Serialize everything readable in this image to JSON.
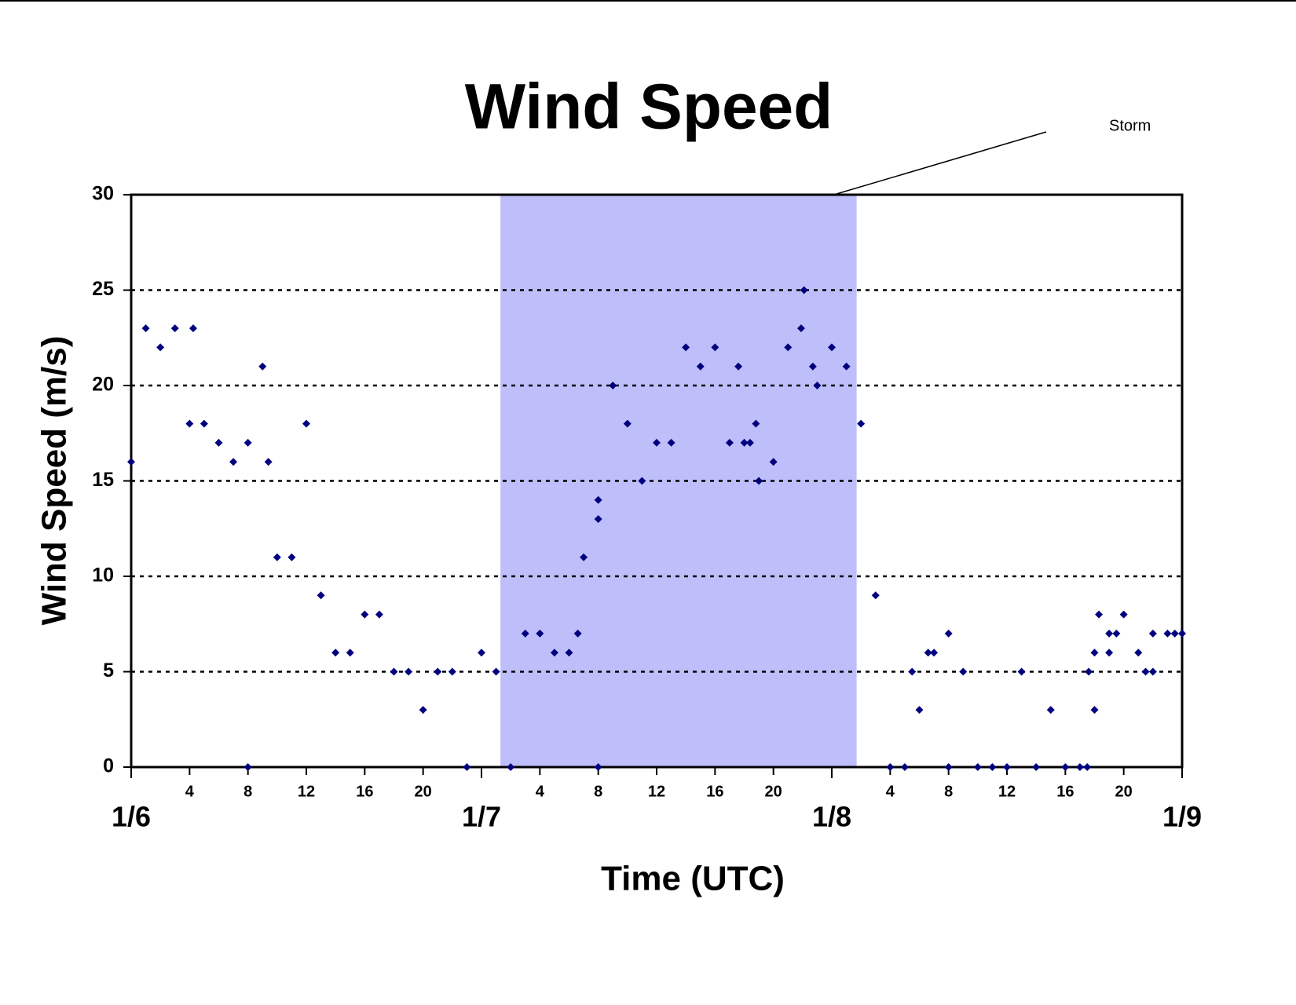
{
  "chart_data": {
    "type": "scatter",
    "title": "Wind Speed",
    "x_label": "Time (UTC)",
    "y_label": "Wind Speed (m/s)",
    "annotation": "Storm",
    "storm_span": [
      25.3,
      49.7
    ],
    "storm_color": "#bebefa",
    "color": "#00007f",
    "grid": true,
    "xlim": [
      0,
      72
    ],
    "ylim": [
      0,
      30
    ],
    "yticks": [
      0,
      5,
      10,
      15,
      20,
      25,
      30
    ],
    "date_ticks": [
      {
        "value": 0,
        "label": "1/6"
      },
      {
        "value": 24,
        "label": "1/7"
      },
      {
        "value": 48,
        "label": "1/8"
      },
      {
        "value": 72,
        "label": "1/9"
      }
    ],
    "xticks": [
      {
        "value": 4,
        "label": "4"
      },
      {
        "value": 8,
        "label": "8"
      },
      {
        "value": 12,
        "label": "12"
      },
      {
        "value": 16,
        "label": "16"
      },
      {
        "value": 20,
        "label": "20"
      },
      {
        "value": 28,
        "label": "4"
      },
      {
        "value": 32,
        "label": "8"
      },
      {
        "value": 36,
        "label": "12"
      },
      {
        "value": 40,
        "label": "16"
      },
      {
        "value": 44,
        "label": "20"
      },
      {
        "value": 52,
        "label": "4"
      },
      {
        "value": 56,
        "label": "8"
      },
      {
        "value": 60,
        "label": "12"
      },
      {
        "value": 64,
        "label": "16"
      },
      {
        "value": 68,
        "label": "20"
      }
    ],
    "x": [
      0,
      1,
      2,
      3,
      4,
      4.25,
      5,
      6,
      7,
      8,
      8,
      9,
      9.4,
      10,
      11,
      12,
      13,
      14,
      15,
      16,
      17,
      18,
      19,
      20,
      21,
      22,
      23,
      24,
      25,
      26,
      27,
      28,
      29,
      30,
      30.6,
      31,
      32,
      32,
      32,
      33,
      34,
      35,
      36,
      37,
      38,
      39,
      40,
      41,
      41.6,
      42,
      42.4,
      42.8,
      43,
      44,
      45,
      45.9,
      46.1,
      46.7,
      47,
      48,
      49,
      50,
      51,
      52,
      53,
      53.5,
      54,
      54.6,
      55,
      56,
      56,
      57,
      58,
      59,
      60,
      61,
      62,
      63,
      64,
      65,
      65.5,
      65.6,
      66,
      66,
      66.3,
      67,
      67,
      67.5,
      68,
      69,
      69.5,
      70,
      70,
      71,
      71.5,
      72
    ],
    "values": [
      16,
      23,
      22,
      23,
      18,
      23,
      18,
      17,
      16,
      17,
      0,
      21,
      16,
      11,
      11,
      18,
      9,
      6,
      6,
      8,
      8,
      5,
      5,
      3,
      5,
      5,
      0,
      6,
      5,
      0,
      7,
      7,
      6,
      6,
      7,
      11,
      14,
      13,
      0,
      20,
      18,
      15,
      17,
      17,
      22,
      21,
      22,
      17,
      21,
      17,
      17,
      18,
      15,
      16,
      22,
      23,
      25,
      21,
      20,
      22,
      21,
      18,
      9,
      0,
      0,
      5,
      3,
      6,
      6,
      7,
      0,
      5,
      0,
      0,
      0,
      5,
      0,
      3,
      0,
      0,
      0,
      5,
      6,
      3,
      8,
      6,
      7,
      7,
      8,
      6,
      5,
      5,
      7,
      7,
      7,
      7
    ]
  }
}
